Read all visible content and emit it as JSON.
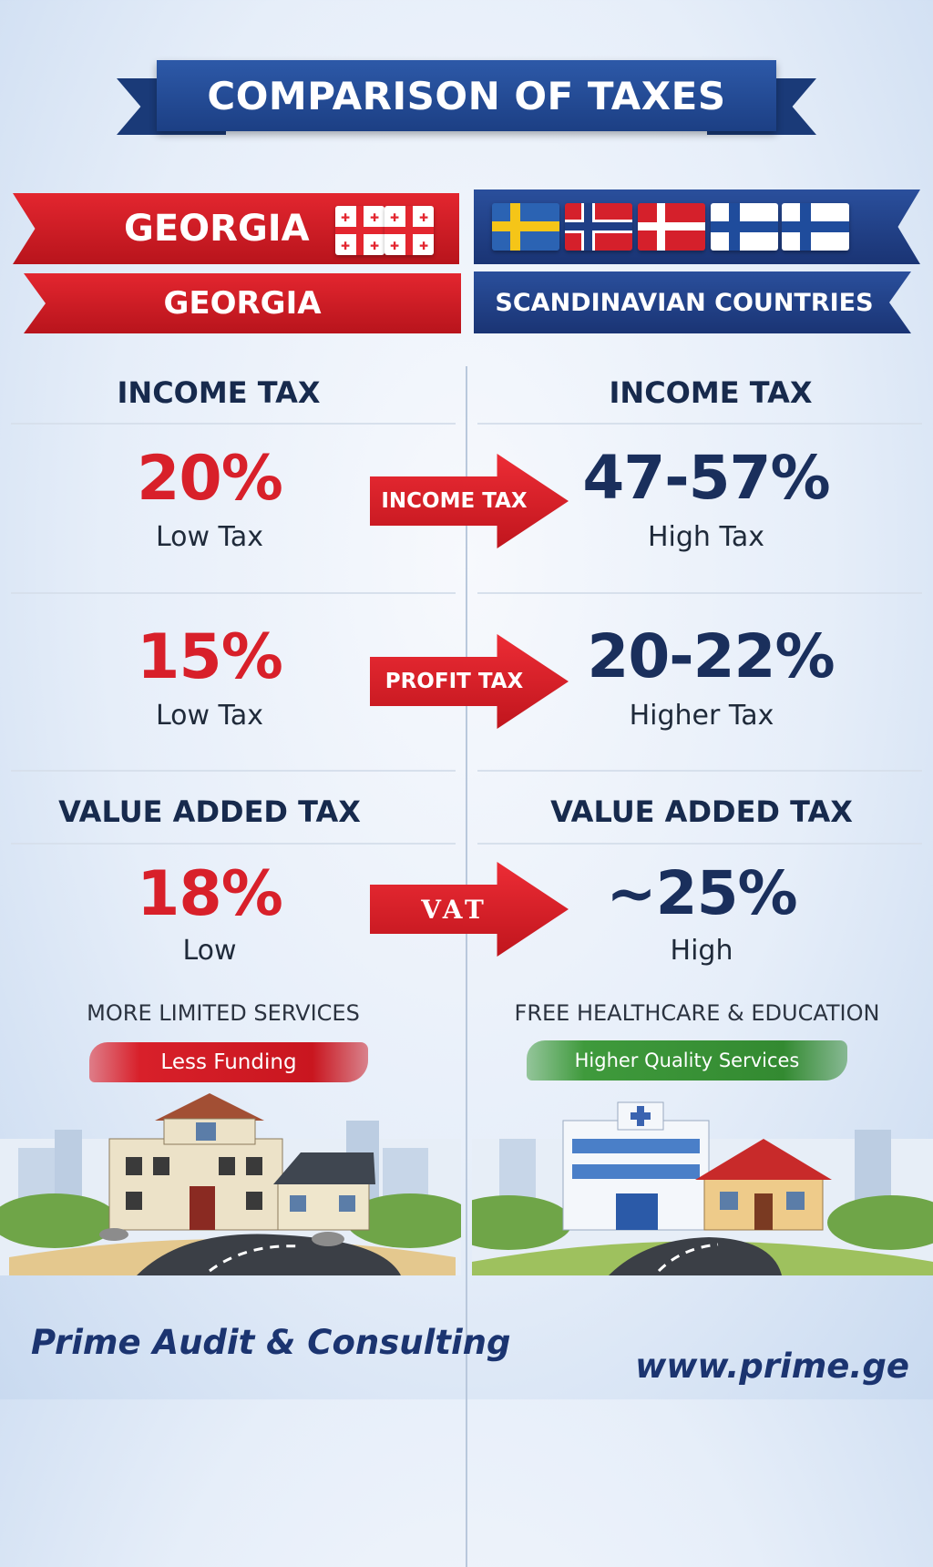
{
  "title": "COMPARISON OF TAXES",
  "left": {
    "banner_top": "GEORGIA",
    "banner_bottom": "GEORGIA",
    "income_heading": "INCOME TAX",
    "income_value": "20%",
    "income_note": "Low Tax",
    "profit_value": "15%",
    "profit_note": "Low Tax",
    "vat_heading": "VALUE ADDED TAX",
    "vat_value": "18%",
    "vat_note": "Low",
    "services_heading": "MORE LIMITED SERVICES",
    "services_tag": "Less Funding"
  },
  "right": {
    "banner_bottom": "SCANDINAVIAN COUNTRIES",
    "flags": [
      "sweden-flag",
      "norway-flag",
      "denmark-flag",
      "finland-flag",
      "finland-flag"
    ],
    "income_heading": "INCOME TAX",
    "income_value": "47-57%",
    "income_note": "High Tax",
    "profit_value": "20-22%",
    "profit_note": "Higher Tax",
    "vat_heading": "VALUE ADDED TAX",
    "vat_value": "~25%",
    "vat_note": "High",
    "services_heading": "FREE HEALTHCARE & EDUCATION",
    "services_tag": "Higher Quality Services"
  },
  "arrows": {
    "income": "INCOME TAX",
    "profit": "PROFIT TAX",
    "vat": "VAT"
  },
  "footer": {
    "company": "Prime Audit & Consulting",
    "website": "www.prime.ge"
  },
  "colors": {
    "red": "#d8202a",
    "navy": "#1a2f5c",
    "banner_blue": "#1c3f84",
    "green": "#3f9a3c"
  }
}
